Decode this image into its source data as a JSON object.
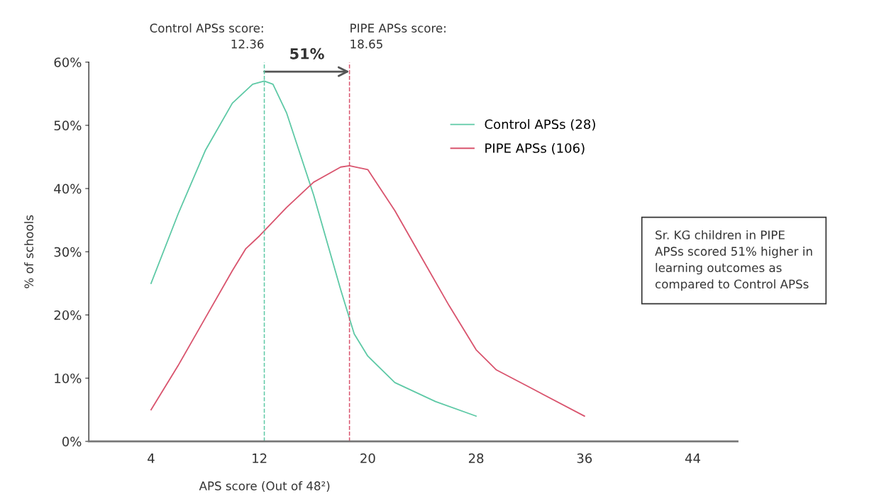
{
  "chart_data": {
    "type": "line",
    "xlabel": "APS score (Out of 48²)",
    "ylabel": "% of schools",
    "xlim": [
      -0.6,
      47.3
    ],
    "xticks": [
      4,
      12,
      20,
      28,
      36,
      44
    ],
    "ylim": [
      0,
      60
    ],
    "yticks": [
      {
        "value": 0,
        "label": "0%"
      },
      {
        "value": 10,
        "label": "10%"
      },
      {
        "value": 20,
        "label": "20%"
      },
      {
        "value": 30,
        "label": "30%"
      },
      {
        "value": 40,
        "label": "40%"
      },
      {
        "value": 50,
        "label": "50%"
      },
      {
        "value": 60,
        "label": "60%"
      }
    ],
    "grid": false,
    "legend": "top right",
    "marker": "none",
    "line_style": "solid",
    "series": [
      {
        "name": "Control APSs (28)",
        "color": "#5ec9a6",
        "x": [
          4,
          6,
          8,
          10,
          11.5,
          12.36,
          13,
          14,
          16,
          18,
          19,
          20,
          22,
          25,
          28
        ],
        "values": [
          25,
          36,
          46,
          53.5,
          56.5,
          57,
          56.5,
          52,
          39,
          24,
          17,
          13.5,
          9.3,
          6.3,
          4
        ]
      },
      {
        "name": "PIPE APSs (106)",
        "color": "#d9546e",
        "x": [
          4,
          6,
          8,
          10,
          11,
          12,
          14,
          16,
          18,
          18.65,
          20,
          22,
          24,
          26,
          28,
          29.5,
          32,
          36
        ],
        "values": [
          5,
          12,
          19.5,
          27,
          30.5,
          32.5,
          37,
          41,
          43.4,
          43.6,
          43,
          36.5,
          29,
          21.5,
          14.5,
          11.3,
          8.5,
          4
        ]
      }
    ],
    "ref_lines": [
      {
        "axis": "x",
        "value": 12.36,
        "label": "Control APSs score:\n12.36",
        "color": "#5ec9a6",
        "line_style": "dashed"
      },
      {
        "axis": "x",
        "value": 18.65,
        "label": "PIPE APSs score:\n18.65",
        "color": "#d9546e",
        "line_style": "dashed"
      }
    ],
    "annotations": [
      "51%",
      "Sr. KG children in PIPE\nAPSs scored 51% higher in\nlearning outcomes as\ncompared to Control APSs"
    ]
  }
}
